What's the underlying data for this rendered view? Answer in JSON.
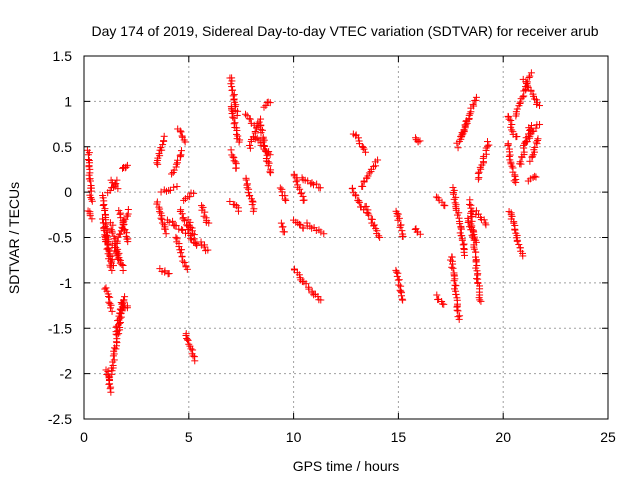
{
  "chart_data": {
    "type": "scatter",
    "title": "Day 174 of 2019, Sidereal Day-to-day VTEC variation (SDTVAR) for receiver arub",
    "xlabel": "GPS time / hours",
    "ylabel": "SDTVAR / TECUs",
    "xlim": [
      0,
      25
    ],
    "ylim": [
      -2.5,
      1.5
    ],
    "xticks": [
      0,
      5,
      10,
      15,
      20,
      25
    ],
    "xtick_labels": [
      "0",
      "5",
      "10",
      "15",
      "20",
      "25"
    ],
    "yticks": [
      -2.5,
      -2,
      -1.5,
      -1,
      -0.5,
      0,
      0.5,
      1,
      1.5
    ],
    "ytick_labels": [
      "-2.5",
      "-2",
      "-1.5",
      "-1",
      "-0.5",
      "0",
      "0.5",
      "1",
      "1.5"
    ],
    "grid": true,
    "marker": "+",
    "color": "#ff0000",
    "segments": [
      {
        "x": [
          0.2,
          0.35
        ],
        "y": [
          0.45,
          -0.1
        ]
      },
      {
        "x": [
          0.2,
          0.35
        ],
        "y": [
          -0.2,
          -0.3
        ]
      },
      {
        "x": [
          0.9,
          1.15
        ],
        "y": [
          -0.05,
          -0.55
        ]
      },
      {
        "x": [
          0.9,
          1.3
        ],
        "y": [
          -0.3,
          -0.85
        ]
      },
      {
        "x": [
          1.0,
          1.4
        ],
        "y": [
          -0.5,
          -0.8
        ]
      },
      {
        "x": [
          1.15,
          1.6
        ],
        "y": [
          0.0,
          0.12
        ]
      },
      {
        "x": [
          1.3,
          1.6
        ],
        "y": [
          0.12,
          0.05
        ]
      },
      {
        "x": [
          1.0,
          1.35
        ],
        "y": [
          -1.05,
          -1.3
        ]
      },
      {
        "x": [
          1.1,
          1.3
        ],
        "y": [
          -1.95,
          -2.2
        ]
      },
      {
        "x": [
          1.25,
          1.9
        ],
        "y": [
          -2.05,
          -1.2
        ]
      },
      {
        "x": [
          1.3,
          1.7
        ],
        "y": [
          -0.35,
          -0.75
        ]
      },
      {
        "x": [
          1.4,
          1.9
        ],
        "y": [
          -0.6,
          -0.85
        ]
      },
      {
        "x": [
          1.6,
          2.1
        ],
        "y": [
          -0.55,
          -0.2
        ]
      },
      {
        "x": [
          1.7,
          2.1
        ],
        "y": [
          -0.2,
          -0.55
        ]
      },
      {
        "x": [
          1.8,
          2.1
        ],
        "y": [
          0.25,
          0.28
        ]
      },
      {
        "x": [
          1.8,
          2.1
        ],
        "y": [
          -1.3,
          -1.25
        ]
      },
      {
        "x": [
          1.5,
          1.9
        ],
        "y": [
          -1.55,
          -1.15
        ]
      },
      {
        "x": [
          3.5,
          3.8
        ],
        "y": [
          0.3,
          0.6
        ]
      },
      {
        "x": [
          3.5,
          3.9
        ],
        "y": [
          -0.1,
          -0.45
        ]
      },
      {
        "x": [
          3.6,
          4.1
        ],
        "y": [
          -0.85,
          -0.9
        ]
      },
      {
        "x": [
          3.7,
          4.4
        ],
        "y": [
          0.0,
          0.05
        ]
      },
      {
        "x": [
          4.0,
          4.8
        ],
        "y": [
          -0.3,
          -0.45
        ]
      },
      {
        "x": [
          4.2,
          4.7
        ],
        "y": [
          0.2,
          0.45
        ]
      },
      {
        "x": [
          4.4,
          4.9
        ],
        "y": [
          -0.5,
          -0.85
        ]
      },
      {
        "x": [
          4.5,
          4.8
        ],
        "y": [
          0.7,
          0.55
        ]
      },
      {
        "x": [
          4.6,
          5.2
        ],
        "y": [
          -0.2,
          -0.55
        ]
      },
      {
        "x": [
          4.8,
          5.2
        ],
        "y": [
          -0.1,
          0.0
        ]
      },
      {
        "x": [
          4.85,
          5.3
        ],
        "y": [
          -1.55,
          -1.85
        ]
      },
      {
        "x": [
          5.0,
          5.4
        ],
        "y": [
          -0.3,
          -0.6
        ]
      },
      {
        "x": [
          5.6,
          5.9
        ],
        "y": [
          -0.15,
          -0.35
        ]
      },
      {
        "x": [
          5.6,
          5.9
        ],
        "y": [
          -0.55,
          -0.65
        ]
      },
      {
        "x": [
          7.0,
          7.3
        ],
        "y": [
          1.27,
          0.85
        ]
      },
      {
        "x": [
          7.0,
          7.4
        ],
        "y": [
          0.95,
          0.55
        ]
      },
      {
        "x": [
          7.0,
          7.3
        ],
        "y": [
          0.45,
          0.25
        ]
      },
      {
        "x": [
          7.0,
          7.4
        ],
        "y": [
          -0.1,
          -0.2
        ]
      },
      {
        "x": [
          7.7,
          8.1
        ],
        "y": [
          0.85,
          0.75
        ]
      },
      {
        "x": [
          7.9,
          8.4
        ],
        "y": [
          0.5,
          0.8
        ]
      },
      {
        "x": [
          7.7,
          8.1
        ],
        "y": [
          0.15,
          -0.2
        ]
      },
      {
        "x": [
          8.2,
          8.9
        ],
        "y": [
          0.6,
          0.4
        ]
      },
      {
        "x": [
          8.4,
          8.9
        ],
        "y": [
          0.75,
          0.2
        ]
      },
      {
        "x": [
          8.6,
          8.9
        ],
        "y": [
          0.95,
          1.0
        ]
      },
      {
        "x": [
          9.4,
          9.6
        ],
        "y": [
          0.05,
          -0.1
        ]
      },
      {
        "x": [
          9.4,
          9.6
        ],
        "y": [
          -0.35,
          -0.45
        ]
      },
      {
        "x": [
          10.0,
          10.5
        ],
        "y": [
          0.2,
          -0.1
        ]
      },
      {
        "x": [
          10.0,
          10.5
        ],
        "y": [
          -0.3,
          -0.4
        ]
      },
      {
        "x": [
          10.0,
          11.3
        ],
        "y": [
          -0.85,
          -1.2
        ]
      },
      {
        "x": [
          10.4,
          11.3
        ],
        "y": [
          0.15,
          0.05
        ]
      },
      {
        "x": [
          10.6,
          11.4
        ],
        "y": [
          -0.35,
          -0.45
        ]
      },
      {
        "x": [
          12.8,
          13.3
        ],
        "y": [
          0.05,
          -0.2
        ]
      },
      {
        "x": [
          12.9,
          13.4
        ],
        "y": [
          0.65,
          0.45
        ]
      },
      {
        "x": [
          13.2,
          14.0
        ],
        "y": [
          0.05,
          0.35
        ]
      },
      {
        "x": [
          13.4,
          14.1
        ],
        "y": [
          -0.15,
          -0.5
        ]
      },
      {
        "x": [
          14.9,
          15.2
        ],
        "y": [
          -0.2,
          -0.5
        ]
      },
      {
        "x": [
          14.9,
          15.2
        ],
        "y": [
          -0.85,
          -1.2
        ]
      },
      {
        "x": [
          15.8,
          16.0
        ],
        "y": [
          0.6,
          0.55
        ]
      },
      {
        "x": [
          15.8,
          16.0
        ],
        "y": [
          -0.4,
          -0.45
        ]
      },
      {
        "x": [
          16.8,
          17.2
        ],
        "y": [
          -0.05,
          -0.15
        ]
      },
      {
        "x": [
          16.8,
          17.2
        ],
        "y": [
          -1.15,
          -1.25
        ]
      },
      {
        "x": [
          17.5,
          17.9
        ],
        "y": [
          -0.7,
          -1.4
        ]
      },
      {
        "x": [
          17.6,
          18.2
        ],
        "y": [
          0.05,
          -0.7
        ]
      },
      {
        "x": [
          17.8,
          18.3
        ],
        "y": [
          0.5,
          0.8
        ]
      },
      {
        "x": [
          18.0,
          18.7
        ],
        "y": [
          0.6,
          1.05
        ]
      },
      {
        "x": [
          18.3,
          18.7
        ],
        "y": [
          -0.3,
          -0.55
        ]
      },
      {
        "x": [
          18.4,
          18.9
        ],
        "y": [
          -0.1,
          -1.2
        ]
      },
      {
        "x": [
          18.6,
          19.2
        ],
        "y": [
          -0.2,
          -0.35
        ]
      },
      {
        "x": [
          18.8,
          19.3
        ],
        "y": [
          0.15,
          0.55
        ]
      },
      {
        "x": [
          20.2,
          20.6
        ],
        "y": [
          0.85,
          0.6
        ]
      },
      {
        "x": [
          20.2,
          20.6
        ],
        "y": [
          0.55,
          0.1
        ]
      },
      {
        "x": [
          20.3,
          20.9
        ],
        "y": [
          -0.2,
          -0.7
        ]
      },
      {
        "x": [
          20.6,
          21.3
        ],
        "y": [
          0.85,
          1.3
        ]
      },
      {
        "x": [
          20.8,
          21.3
        ],
        "y": [
          0.3,
          0.75
        ]
      },
      {
        "x": [
          21.0,
          21.7
        ],
        "y": [
          1.25,
          0.95
        ]
      },
      {
        "x": [
          21.1,
          21.7
        ],
        "y": [
          0.55,
          0.75
        ]
      },
      {
        "x": [
          21.2,
          21.6
        ],
        "y": [
          0.12,
          0.18
        ]
      },
      {
        "x": [
          21.3,
          21.7
        ],
        "y": [
          0.35,
          0.6
        ]
      }
    ]
  }
}
